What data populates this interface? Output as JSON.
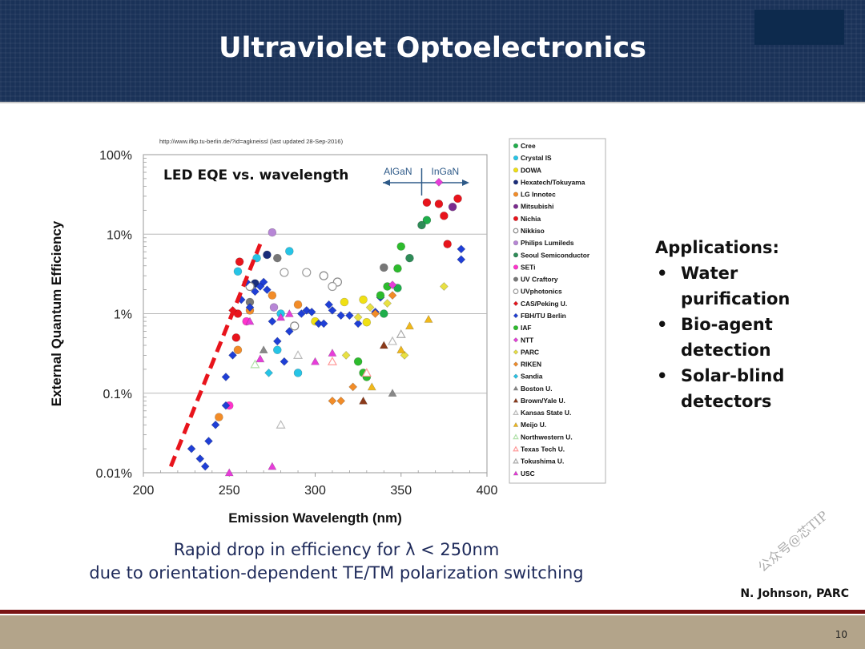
{
  "slide": {
    "title": "Ultraviolet Optoelectronics",
    "page_number": "10",
    "credit": "N. Johnson, PARC",
    "watermark": "公众号@芯TIP",
    "applications": {
      "heading": "Applications:",
      "items": [
        "Water purification",
        "Bio-agent detection",
        "Solar-blind detectors"
      ]
    },
    "caption": {
      "line1": "Rapid drop in efficiency for λ < 250nm",
      "line2": "due to orientation-dependent TE/TM polarization switching"
    }
  },
  "chart_data": {
    "type": "scatter",
    "title": "LED EQE vs. wavelength",
    "source_note": "http://www.ifkp.tu-berlin.de/?id=agkneissl   (last updated 28-Sep-2016)",
    "xlabel": "Emission Wavelength (nm)",
    "ylabel": "External Quantum Efficiency",
    "xlim": [
      200,
      400
    ],
    "ylim": [
      0.01,
      100
    ],
    "yscale": "log",
    "x_ticks": [
      "200",
      "250",
      "300",
      "350",
      "400"
    ],
    "y_ticks": [
      "100%",
      "10%",
      "1%",
      "0.1%",
      "0.01%"
    ],
    "grid": "horizontal",
    "annotations": {
      "left_label": "AlGaN",
      "right_label": "InGaN",
      "boundary_x": 362
    },
    "trend_line": {
      "from": [
        216,
        0.012
      ],
      "to": [
        268,
        7.5
      ],
      "style": "dashed",
      "color": "#e8141c"
    },
    "legend_position": "right",
    "series": [
      {
        "name": "Cree",
        "color": "#1fae4b",
        "marker": "circle",
        "filled": true,
        "points": [
          [
            340,
            1.0
          ],
          [
            365,
            15
          ],
          [
            348,
            2.1
          ]
        ]
      },
      {
        "name": "Crystal IS",
        "color": "#26c4e6",
        "marker": "circle",
        "filled": true,
        "points": [
          [
            255,
            3.4
          ],
          [
            266,
            5.0
          ],
          [
            280,
            1.0
          ],
          [
            285,
            6.1
          ],
          [
            290,
            0.18
          ],
          [
            278,
            0.35
          ]
        ]
      },
      {
        "name": "DOWA",
        "color": "#f0e014",
        "marker": "circle",
        "filled": true,
        "points": [
          [
            300,
            0.8
          ],
          [
            317,
            1.4
          ],
          [
            328,
            1.5
          ],
          [
            330,
            0.78
          ]
        ]
      },
      {
        "name": "Hexatech/Tokuyama",
        "color": "#1a2d7a",
        "marker": "circle",
        "filled": true,
        "points": [
          [
            265,
            2.4
          ],
          [
            272,
            5.5
          ]
        ]
      },
      {
        "name": "LG Innotec",
        "color": "#f28c28",
        "marker": "circle",
        "filled": true,
        "points": [
          [
            244,
            0.05
          ],
          [
            255,
            0.35
          ],
          [
            262,
            1.1
          ],
          [
            275,
            1.7
          ],
          [
            290,
            1.3
          ]
        ]
      },
      {
        "name": "Mitsubishi",
        "color": "#7a2b8e",
        "marker": "circle",
        "filled": true,
        "points": [
          [
            380,
            22
          ]
        ]
      },
      {
        "name": "Nichia",
        "color": "#e8141c",
        "marker": "circle",
        "filled": true,
        "points": [
          [
            254,
            0.5
          ],
          [
            255,
            1.0
          ],
          [
            256,
            4.5
          ],
          [
            365,
            25
          ],
          [
            372,
            24
          ],
          [
            375,
            17
          ],
          [
            383,
            28
          ],
          [
            377,
            7.5
          ]
        ]
      },
      {
        "name": "Nikkiso",
        "color": "#888888",
        "marker": "circle",
        "filled": false,
        "points": [
          [
            262,
            2.2
          ],
          [
            288,
            0.7
          ],
          [
            305,
            3.0
          ],
          [
            313,
            2.5
          ]
        ]
      },
      {
        "name": "Philips Lumileds",
        "color": "#b786d6",
        "marker": "circle",
        "filled": true,
        "points": [
          [
            275,
            10.5
          ],
          [
            276,
            1.2
          ]
        ]
      },
      {
        "name": "Seoul Semiconductor",
        "color": "#2e8b57",
        "marker": "circle",
        "filled": true,
        "points": [
          [
            355,
            5.0
          ],
          [
            362,
            13
          ]
        ]
      },
      {
        "name": "SETi",
        "color": "#ff33cc",
        "marker": "circle",
        "filled": true,
        "points": [
          [
            250,
            0.07
          ],
          [
            260,
            0.8
          ]
        ]
      },
      {
        "name": "UV Craftory",
        "color": "#777777",
        "marker": "circle",
        "filled": true,
        "points": [
          [
            278,
            5.0
          ],
          [
            340,
            3.8
          ],
          [
            262,
            1.4
          ]
        ]
      },
      {
        "name": "UVphotonics",
        "color": "#9a9a9a",
        "marker": "circle",
        "filled": false,
        "points": [
          [
            282,
            3.3
          ],
          [
            295,
            3.3
          ],
          [
            310,
            2.2
          ]
        ]
      },
      {
        "name": "CAS/Peking U.",
        "color": "#e8141c",
        "marker": "diamond",
        "filled": true,
        "points": [
          [
            252,
            1.1
          ]
        ]
      },
      {
        "name": "FBH/TU Berlin",
        "color": "#1f3fd6",
        "marker": "diamond",
        "filled": true,
        "points": [
          [
            228,
            0.02
          ],
          [
            233,
            0.015
          ],
          [
            236,
            0.012
          ],
          [
            238,
            0.025
          ],
          [
            242,
            0.04
          ],
          [
            248,
            0.16
          ],
          [
            248,
            0.07
          ],
          [
            252,
            0.3
          ],
          [
            257,
            1.5
          ],
          [
            260,
            2.5
          ],
          [
            262,
            1.2
          ],
          [
            265,
            1.9
          ],
          [
            268,
            2.2
          ],
          [
            270,
            2.5
          ],
          [
            272,
            2.0
          ],
          [
            275,
            0.8
          ],
          [
            278,
            0.45
          ],
          [
            282,
            0.25
          ],
          [
            285,
            0.6
          ],
          [
            292,
            1.0
          ],
          [
            295,
            1.1
          ],
          [
            298,
            1.05
          ],
          [
            302,
            0.75
          ],
          [
            305,
            0.75
          ],
          [
            308,
            1.3
          ],
          [
            310,
            1.1
          ],
          [
            315,
            0.95
          ],
          [
            320,
            0.95
          ],
          [
            325,
            0.75
          ],
          [
            335,
            1.05
          ],
          [
            338,
            1.6
          ],
          [
            385,
            6.5
          ],
          [
            385,
            4.8
          ]
        ]
      },
      {
        "name": "IAF",
        "color": "#2dbb2d",
        "marker": "circle",
        "filled": true,
        "points": [
          [
            325,
            0.25
          ],
          [
            328,
            0.18
          ],
          [
            330,
            0.16
          ],
          [
            338,
            1.7
          ],
          [
            342,
            2.2
          ],
          [
            348,
            3.7
          ],
          [
            350,
            7.0
          ]
        ]
      },
      {
        "name": "NTT",
        "color": "#e63dd9",
        "marker": "diamond",
        "filled": true,
        "points": [
          [
            345,
            2.3
          ],
          [
            372,
            45
          ]
        ]
      },
      {
        "name": "PARC",
        "color": "#e8e043",
        "marker": "diamond",
        "filled": true,
        "points": [
          [
            318,
            0.3
          ],
          [
            325,
            0.9
          ],
          [
            332,
            1.2
          ],
          [
            342,
            1.35
          ],
          [
            352,
            0.3
          ],
          [
            375,
            2.2
          ]
        ]
      },
      {
        "name": "RIKEN",
        "color": "#f28c28",
        "marker": "diamond",
        "filled": true,
        "points": [
          [
            310,
            0.08
          ],
          [
            315,
            0.08
          ],
          [
            322,
            0.12
          ],
          [
            335,
            1.0
          ],
          [
            345,
            1.7
          ]
        ]
      },
      {
        "name": "Sandia",
        "color": "#26c4e6",
        "marker": "diamond",
        "filled": true,
        "points": [
          [
            273,
            0.18
          ]
        ]
      },
      {
        "name": "Boston U.",
        "color": "#888888",
        "marker": "triangle",
        "filled": true,
        "points": [
          [
            270,
            0.35
          ],
          [
            345,
            0.1
          ]
        ]
      },
      {
        "name": "Brown/Yale U.",
        "color": "#8b3a1a",
        "marker": "triangle",
        "filled": true,
        "points": [
          [
            328,
            0.08
          ],
          [
            340,
            0.4
          ]
        ]
      },
      {
        "name": "Kansas State U.",
        "color": "#bbbbbb",
        "marker": "triangle",
        "filled": false,
        "points": [
          [
            290,
            0.3
          ],
          [
            280,
            0.04
          ],
          [
            345,
            0.45
          ]
        ]
      },
      {
        "name": "Meijo U.",
        "color": "#f0b81a",
        "marker": "triangle",
        "filled": true,
        "points": [
          [
            333,
            0.12
          ],
          [
            350,
            0.35
          ],
          [
            355,
            0.7
          ],
          [
            366,
            0.85
          ]
        ]
      },
      {
        "name": "Northwestern U.",
        "color": "#b0e0a8",
        "marker": "triangle",
        "filled": false,
        "points": [
          [
            265,
            0.23
          ]
        ]
      },
      {
        "name": "Texas Tech U.",
        "color": "#ff9999",
        "marker": "triangle",
        "filled": false,
        "points": [
          [
            310,
            0.25
          ],
          [
            330,
            0.18
          ]
        ]
      },
      {
        "name": "Tokushima U.",
        "color": "#aaaaaa",
        "marker": "triangle",
        "filled": false,
        "points": [
          [
            350,
            0.55
          ]
        ]
      },
      {
        "name": "USC",
        "color": "#e63dd9",
        "marker": "triangle",
        "filled": true,
        "points": [
          [
            250,
            0.01
          ],
          [
            275,
            0.012
          ],
          [
            262,
            0.8
          ],
          [
            268,
            0.27
          ],
          [
            280,
            0.9
          ],
          [
            285,
            1.0
          ],
          [
            300,
            0.25
          ],
          [
            310,
            0.32
          ]
        ]
      }
    ]
  }
}
